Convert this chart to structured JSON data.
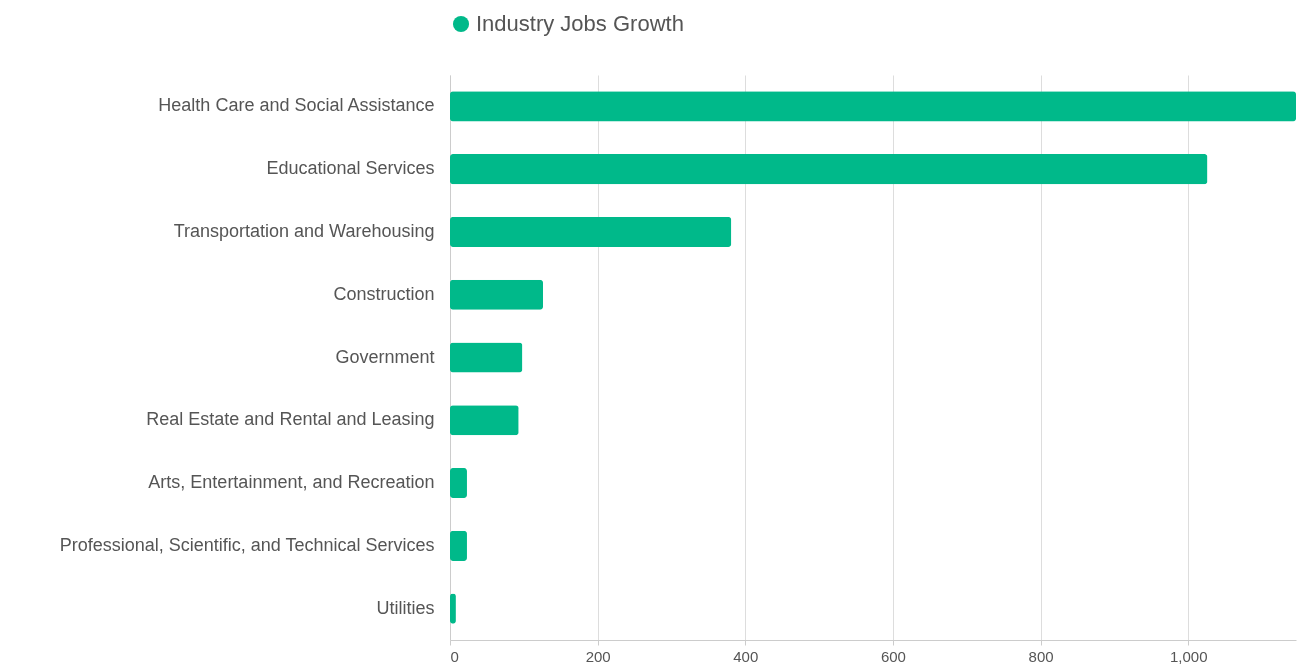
{
  "chart_data": {
    "type": "bar",
    "orientation": "horizontal",
    "categories": [
      "Health Care and Social Assistance",
      "Educational Services",
      "Transportation and Warehousing",
      "Construction",
      "Government",
      "Real Estate and Rental and Leasing",
      "Arts, Entertainment, and Recreation",
      "Professional, Scientific, and Technical Services",
      "Utilities"
    ],
    "series": [
      {
        "name": "Industry Jobs Growth",
        "color": "#00b98a",
        "values": [
          1146,
          1026,
          381,
          126,
          98,
          93,
          23,
          23,
          8
        ]
      }
    ],
    "xlim": [
      0,
      1146
    ],
    "xticks": [
      0,
      200,
      400,
      600,
      800,
      {
        "value": 1000,
        "label": "1,000"
      }
    ],
    "grid": "x",
    "legend": "top"
  }
}
